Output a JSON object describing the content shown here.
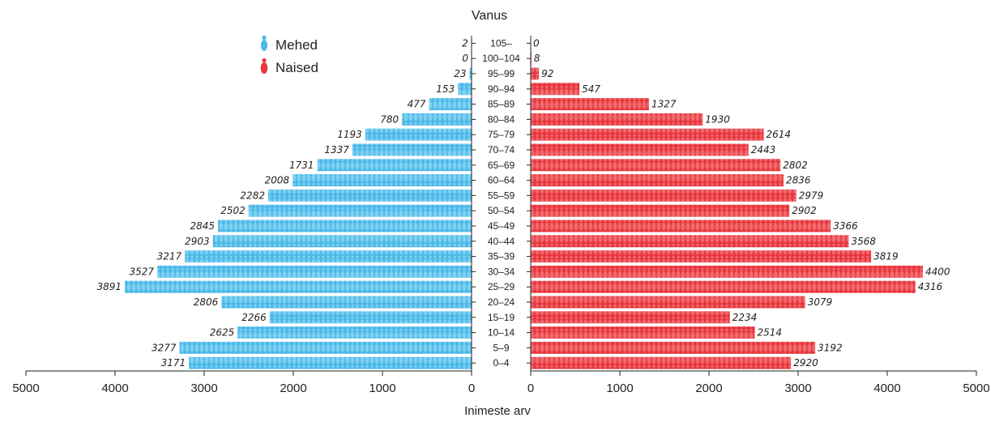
{
  "chart_data": {
    "type": "bar",
    "subtype": "population-pyramid",
    "title": "Vanus",
    "xlabel": "Inimeste arv",
    "xlim": [
      0,
      5000
    ],
    "x_ticks": [
      0,
      1000,
      2000,
      3000,
      4000,
      5000
    ],
    "legend_position": "top-left",
    "categories": [
      "105–",
      "100–104",
      "95–99",
      "90–94",
      "85–89",
      "80–84",
      "75–79",
      "70–74",
      "65–69",
      "60–64",
      "55–59",
      "50–54",
      "45–49",
      "40–44",
      "35–39",
      "30–34",
      "25–29",
      "20–24",
      "15–19",
      "10–14",
      "5–9",
      "0–4"
    ],
    "series": [
      {
        "name": "Mehed",
        "side": "left",
        "color": "#4cb9e8",
        "values": [
          2,
          0,
          23,
          153,
          477,
          780,
          1193,
          1337,
          1731,
          2008,
          2282,
          2502,
          2845,
          2903,
          3217,
          3527,
          3891,
          2806,
          2266,
          2625,
          3277,
          3171
        ]
      },
      {
        "name": "Naised",
        "side": "right",
        "color": "#e8373e",
        "values": [
          0,
          8,
          92,
          547,
          1327,
          1930,
          2614,
          2443,
          2802,
          2836,
          2979,
          2902,
          3366,
          3568,
          3819,
          4400,
          4316,
          3079,
          2234,
          2514,
          3192,
          2920
        ]
      }
    ]
  }
}
